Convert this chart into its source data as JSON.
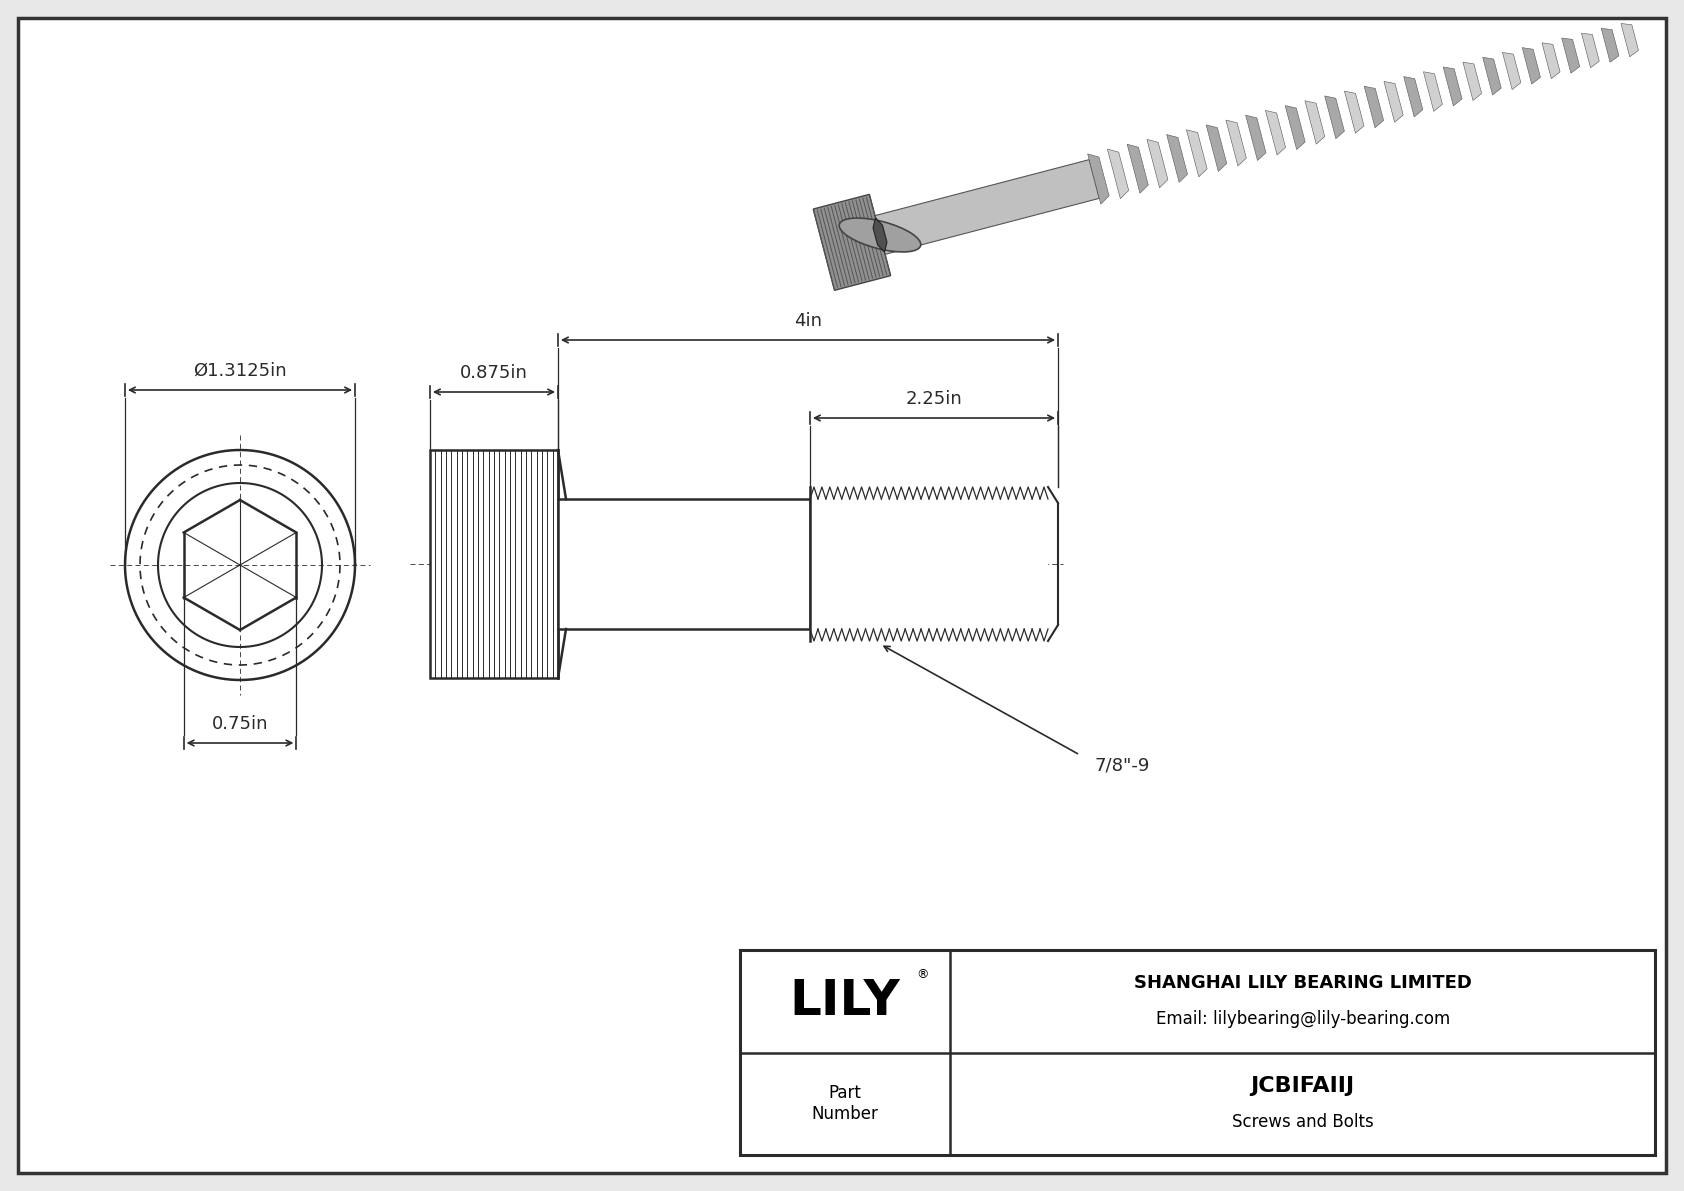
{
  "bg_color": "#e8e8e8",
  "border_color": "#333333",
  "line_color": "#2a2a2a",
  "dim_color": "#2a2a2a",
  "title": "JCBIFAIIJ",
  "subtitle": "Screws and Bolts",
  "company": "SHANGHAI LILY BEARING LIMITED",
  "email": "Email: lilybearing@lily-bearing.com",
  "part_label": "Part\nNumber",
  "dim_diameter": "Ø1.3125in",
  "dim_hex": "0.75in",
  "dim_head_width": "0.875in",
  "dim_total": "4in",
  "dim_thread": "2.25in",
  "dim_thread_label": "7/8\"-9"
}
